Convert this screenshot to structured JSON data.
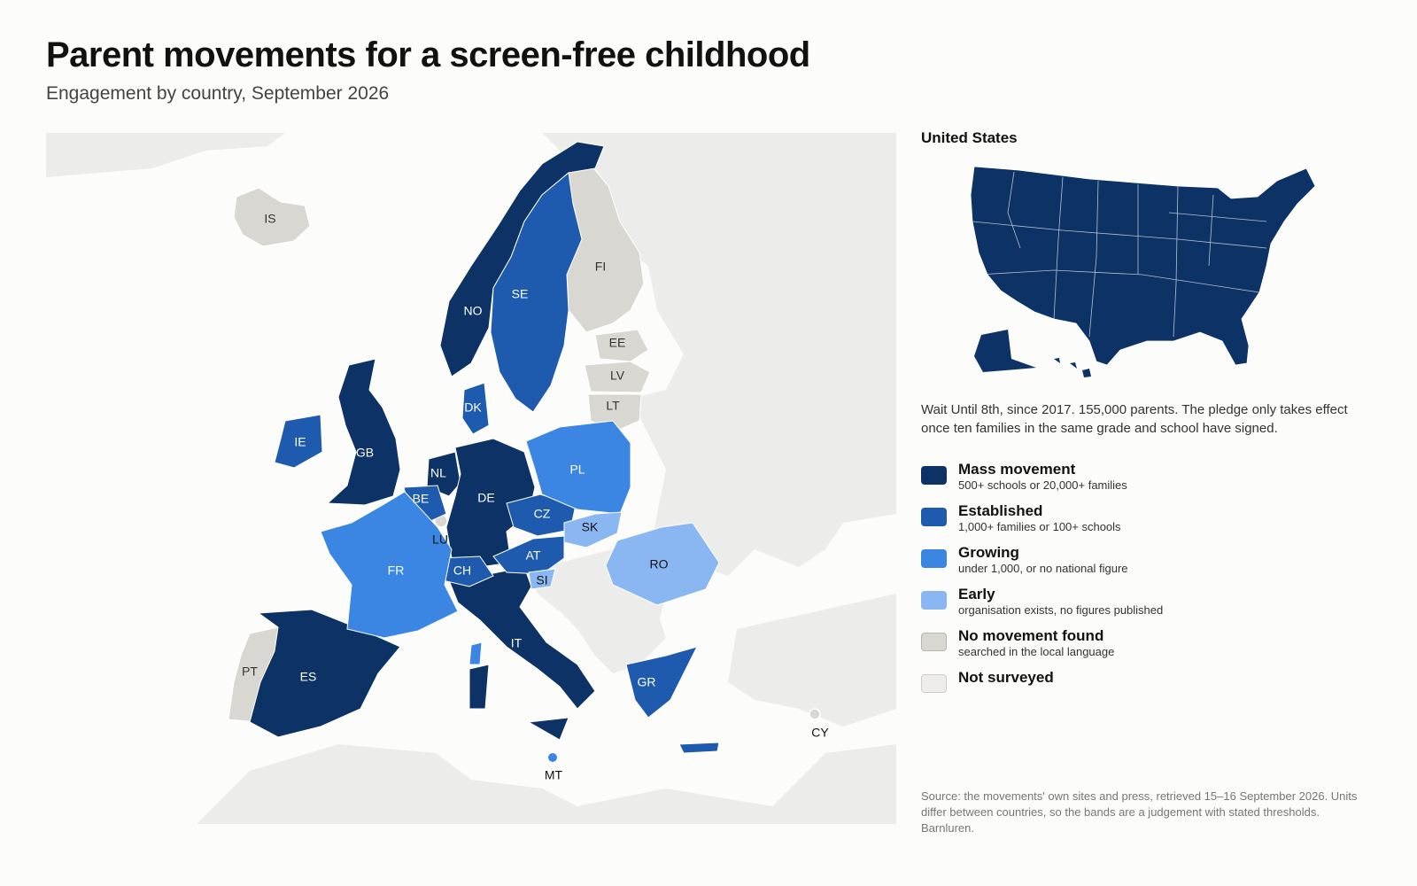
{
  "title": "Parent movements for a screen-free childhood",
  "subtitle": "Engagement by country, September 2026",
  "colors": {
    "mass": "#0c3266",
    "established": "#1e5aad",
    "growing": "#3a86e2",
    "early": "#8ab7f1",
    "none": "#d9d7d2",
    "not_surveyed": "#eeedea",
    "background_land": "#ececea",
    "sea": "#fcfcfb"
  },
  "countries": [
    {
      "code": "IS",
      "category": "none"
    },
    {
      "code": "NO",
      "category": "mass"
    },
    {
      "code": "SE",
      "category": "established"
    },
    {
      "code": "FI",
      "category": "none"
    },
    {
      "code": "EE",
      "category": "none"
    },
    {
      "code": "LV",
      "category": "none"
    },
    {
      "code": "LT",
      "category": "none"
    },
    {
      "code": "DK",
      "category": "established"
    },
    {
      "code": "IE",
      "category": "established"
    },
    {
      "code": "GB",
      "category": "mass"
    },
    {
      "code": "NL",
      "category": "mass"
    },
    {
      "code": "BE",
      "category": "established"
    },
    {
      "code": "LU",
      "category": "none"
    },
    {
      "code": "DE",
      "category": "mass"
    },
    {
      "code": "PL",
      "category": "growing"
    },
    {
      "code": "CZ",
      "category": "established"
    },
    {
      "code": "SK",
      "category": "early"
    },
    {
      "code": "AT",
      "category": "established"
    },
    {
      "code": "CH",
      "category": "established"
    },
    {
      "code": "SI",
      "category": "early"
    },
    {
      "code": "FR",
      "category": "growing"
    },
    {
      "code": "RO",
      "category": "early"
    },
    {
      "code": "IT",
      "category": "mass"
    },
    {
      "code": "PT",
      "category": "none"
    },
    {
      "code": "ES",
      "category": "mass"
    },
    {
      "code": "GR",
      "category": "established"
    },
    {
      "code": "MT",
      "category": "growing"
    },
    {
      "code": "CY",
      "category": "none"
    }
  ],
  "us_panel": {
    "title": "United States",
    "category": "mass",
    "description": "Wait Until 8th, since 2017. 155,000 parents. The pledge only takes effect once ten families in the same grade and school have signed."
  },
  "legend": [
    {
      "key": "mass",
      "label": "Mass movement",
      "sublabel": "500+ schools or 20,000+ families"
    },
    {
      "key": "established",
      "label": "Established",
      "sublabel": "1,000+ families or 100+ schools"
    },
    {
      "key": "growing",
      "label": "Growing",
      "sublabel": "under 1,000, or no national figure"
    },
    {
      "key": "early",
      "label": "Early",
      "sublabel": "organisation exists, no figures published"
    },
    {
      "key": "none",
      "label": "No movement found",
      "sublabel": "searched in the local language"
    },
    {
      "key": "not_surveyed",
      "label": "Not surveyed",
      "sublabel": ""
    }
  ],
  "source": "Source: the movements' own sites and press, retrieved 15–16 September 2026. Units differ between countries, so the bands are a judgement with stated thresholds. Barnluren."
}
